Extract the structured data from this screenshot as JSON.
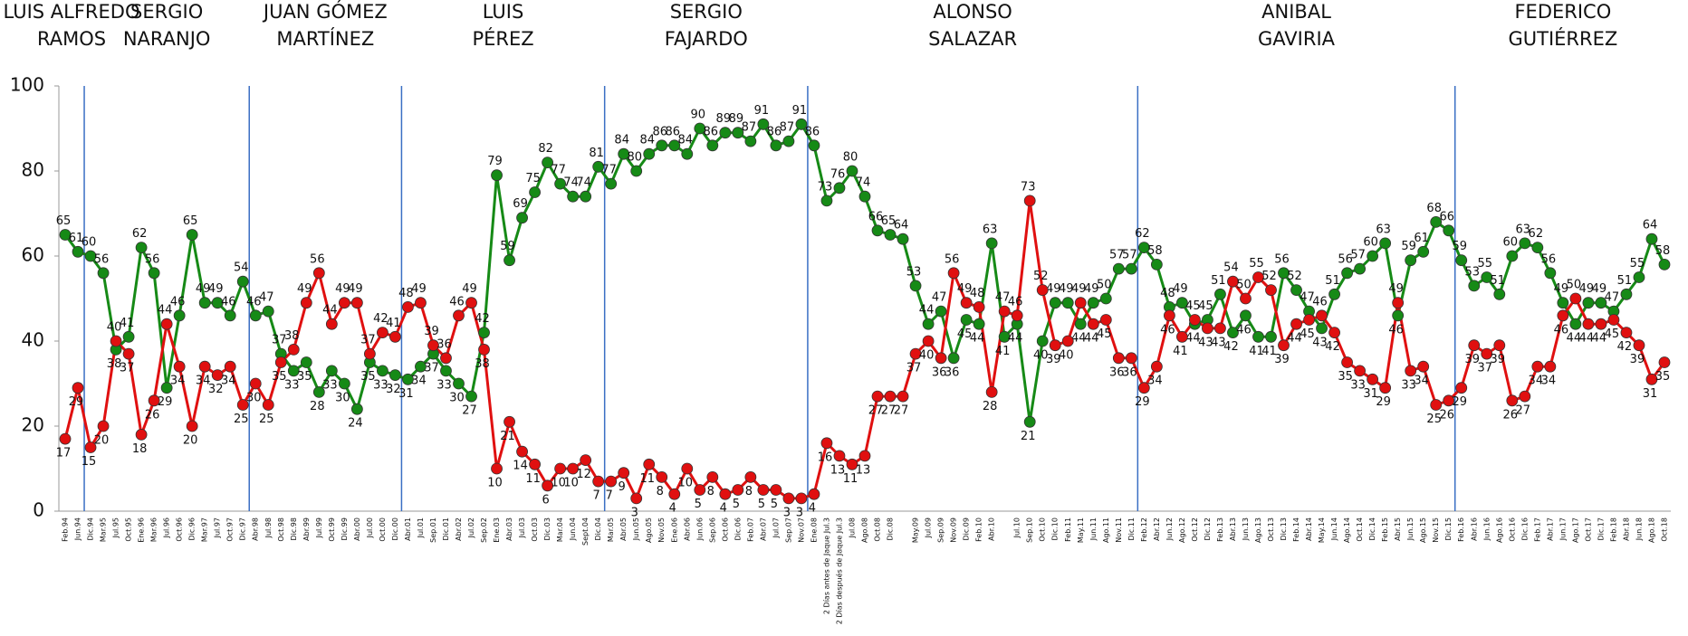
{
  "chart_data": {
    "type": "line",
    "administrations": [
      [
        "LUIS ALFREDO",
        "RAMOS"
      ],
      [
        "SERGIO",
        "NARANJO"
      ],
      [
        "JUAN GÓMEZ",
        "MARTÍNEZ"
      ],
      [
        "LUIS",
        "PÉREZ"
      ],
      [
        "SERGIO",
        "FAJARDO"
      ],
      [
        "ALONSO",
        "SALAZAR"
      ],
      [
        "ANIBAL",
        "GAVIRIA"
      ],
      [
        "FEDERICO",
        "GUTIÉRREZ"
      ]
    ],
    "categories": [
      "Feb.94",
      "Jun.94",
      "Dic.94",
      "Mar.95",
      "Jul.95",
      "Oct.95",
      "Ene.96",
      "Mar.96",
      "Jul.96",
      "Oct.96",
      "Dic.96",
      "Mar.97",
      "Jul.97",
      "Oct.97",
      "Dic.97",
      "Abr.98",
      "Jul.98",
      "Oct.98",
      "Dic.98",
      "Abr.99",
      "Jul.99",
      "Oct.99",
      "Dic.99",
      "Abr.00",
      "Jul.00",
      "Oct.00",
      "Dic.00",
      "Abr.01",
      "Jul.01",
      "Sep.01",
      "Dic.01",
      "Abr.02",
      "Jul.02",
      "Sep.02",
      "Ene.03",
      "Abr.03",
      "Jul.03",
      "Oct.03",
      "Dic.03",
      "Mar.04",
      "Jun.04",
      "Sept.04",
      "Dic.04",
      "Mar.05",
      "Abr.05",
      "Jun.05",
      "Ago.05",
      "Nov.05",
      "Ene.06",
      "Abr.06",
      "Jun.06",
      "Sep.06",
      "Oct.06",
      "Dic.06",
      "Feb.07",
      "Abr.07",
      "Jul.07",
      "Sep.07",
      "Nov.07",
      "Ene.08",
      "2 Días antes de Jaque Jul.3",
      "2 Días después de Jaque Jul.3",
      "Jul.08",
      "Ago.08",
      "Oct.08",
      "Dic.08",
      null,
      "May.09",
      "Jul.09",
      "Sep.09",
      "Nov.09",
      "Dic.09",
      "Feb.10",
      "Abr.10",
      null,
      "Jul.10",
      "Sep.10",
      "Oct.10",
      "Dic.10",
      "Feb.11",
      "May.11",
      "Jun.11",
      "Ago.11",
      "Nov.11",
      "Dic.11",
      "Feb.12",
      "Abr.12",
      "Jun.12",
      "Ago.12",
      "Oct.12",
      "Dic.12",
      "Feb.13",
      "Abr.13",
      "Jun.13",
      "Ago.13",
      "Oct.13",
      "Dic.13",
      "Feb.14",
      "Abr.14",
      "May.14",
      "Jun.14",
      "Ago.14",
      "Oct.14",
      "Dic.14",
      "Feb.15",
      "Abr.15",
      "Jun.15",
      "Ago.15",
      "Nov.15",
      "Dic.15",
      "Feb.16",
      "Abr.16",
      "Jun.16",
      "Ago.16",
      "Oct.16",
      "Dic.16",
      "Feb.17",
      "Abr.17",
      "Jun.17",
      "Ago.17",
      "Oct.17",
      "Dic.17",
      "Feb.18",
      "Abr.18",
      "Jun.18",
      "Ago.18",
      "Oct.18"
    ],
    "series": [
      {
        "color": "#168a16",
        "values": [
          65,
          61,
          60,
          56,
          38,
          41,
          62,
          56,
          29,
          46,
          65,
          49,
          49,
          46,
          54,
          46,
          47,
          37,
          33,
          35,
          28,
          33,
          30,
          24,
          35,
          33,
          32,
          31,
          34,
          37,
          33,
          30,
          27,
          42,
          79,
          59,
          69,
          75,
          82,
          77,
          74,
          74,
          81,
          77,
          84,
          80,
          84,
          86,
          86,
          84,
          90,
          86,
          89,
          89,
          87,
          91,
          86,
          87,
          91,
          86,
          73,
          76,
          80,
          74,
          66,
          65,
          64,
          53,
          44,
          47,
          36,
          45,
          44,
          63,
          41,
          44,
          21,
          40,
          49,
          49,
          44,
          49,
          50,
          57,
          57,
          62,
          58,
          48,
          49,
          44,
          45,
          51,
          42,
          46,
          41,
          41,
          56,
          52,
          47,
          43,
          51,
          56,
          57,
          60,
          63,
          46,
          59,
          61,
          68,
          66,
          59,
          53,
          55,
          51,
          60,
          63,
          62,
          56,
          49,
          44,
          49,
          49,
          47,
          51,
          55,
          64,
          58
        ]
      },
      {
        "color": "#e01010",
        "values": [
          17,
          29,
          15,
          20,
          40,
          37,
          18,
          26,
          44,
          34,
          20,
          34,
          32,
          34,
          25,
          30,
          25,
          35,
          38,
          49,
          56,
          44,
          49,
          49,
          37,
          42,
          41,
          48,
          49,
          39,
          36,
          46,
          49,
          38,
          10,
          21,
          14,
          11,
          6,
          10,
          10,
          12,
          7,
          7,
          9,
          3,
          11,
          8,
          4,
          10,
          5,
          8,
          4,
          5,
          8,
          5,
          5,
          3,
          3,
          4,
          16,
          13,
          11,
          13,
          27,
          27,
          27,
          37,
          40,
          36,
          56,
          49,
          48,
          28,
          47,
          46,
          73,
          52,
          39,
          40,
          49,
          44,
          45,
          36,
          36,
          29,
          34,
          46,
          41,
          45,
          43,
          43,
          54,
          50,
          55,
          52,
          39,
          44,
          45,
          46,
          42,
          35,
          33,
          31,
          29,
          49,
          33,
          34,
          25,
          26,
          29,
          39,
          37,
          39,
          26,
          27,
          34,
          34,
          46,
          50,
          44,
          44,
          45,
          42,
          39,
          31,
          35
        ]
      }
    ],
    "ylim": [
      0,
      100
    ],
    "yticks": [
      0,
      20,
      40,
      60,
      80,
      100
    ]
  }
}
